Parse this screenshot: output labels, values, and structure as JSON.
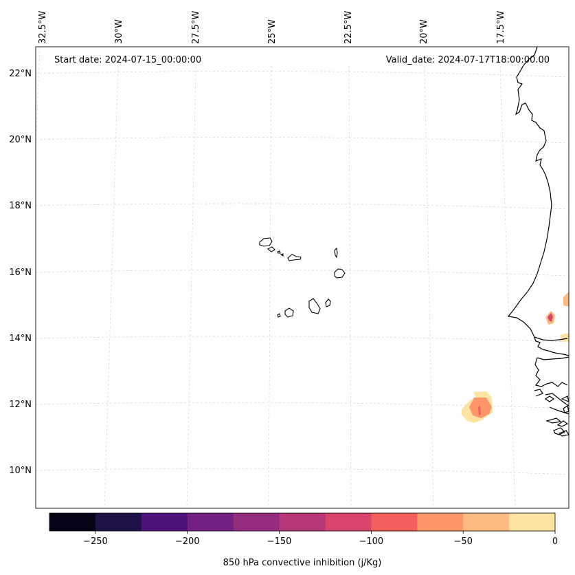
{
  "header": {
    "start_date": "Start date: 2024-07-15_00:00:00",
    "valid_date": "Valid_date: 2024-07-17T18:00:00.00"
  },
  "lon_labels": [
    "32.5°W",
    "30°W",
    "27.5°W",
    "25°W",
    "22.5°W",
    "20°W",
    "17.5°W"
  ],
  "lat_labels": [
    "22°N",
    "20°N",
    "18°N",
    "16°N",
    "14°N",
    "12°N",
    "10°N"
  ],
  "colorbar": {
    "label": "850 hPa convective inhibition (j/Kg)",
    "ticks": [
      "−250",
      "−200",
      "−150",
      "−100",
      "−50",
      "0"
    ],
    "range": [
      -275,
      0
    ],
    "colors": [
      "#050416",
      "#1d1146",
      "#4f127b",
      "#721f81",
      "#942c80",
      "#b73779",
      "#d8456c",
      "#f1605d",
      "#fd9668",
      "#febb81",
      "#fee4a1"
    ]
  }
}
